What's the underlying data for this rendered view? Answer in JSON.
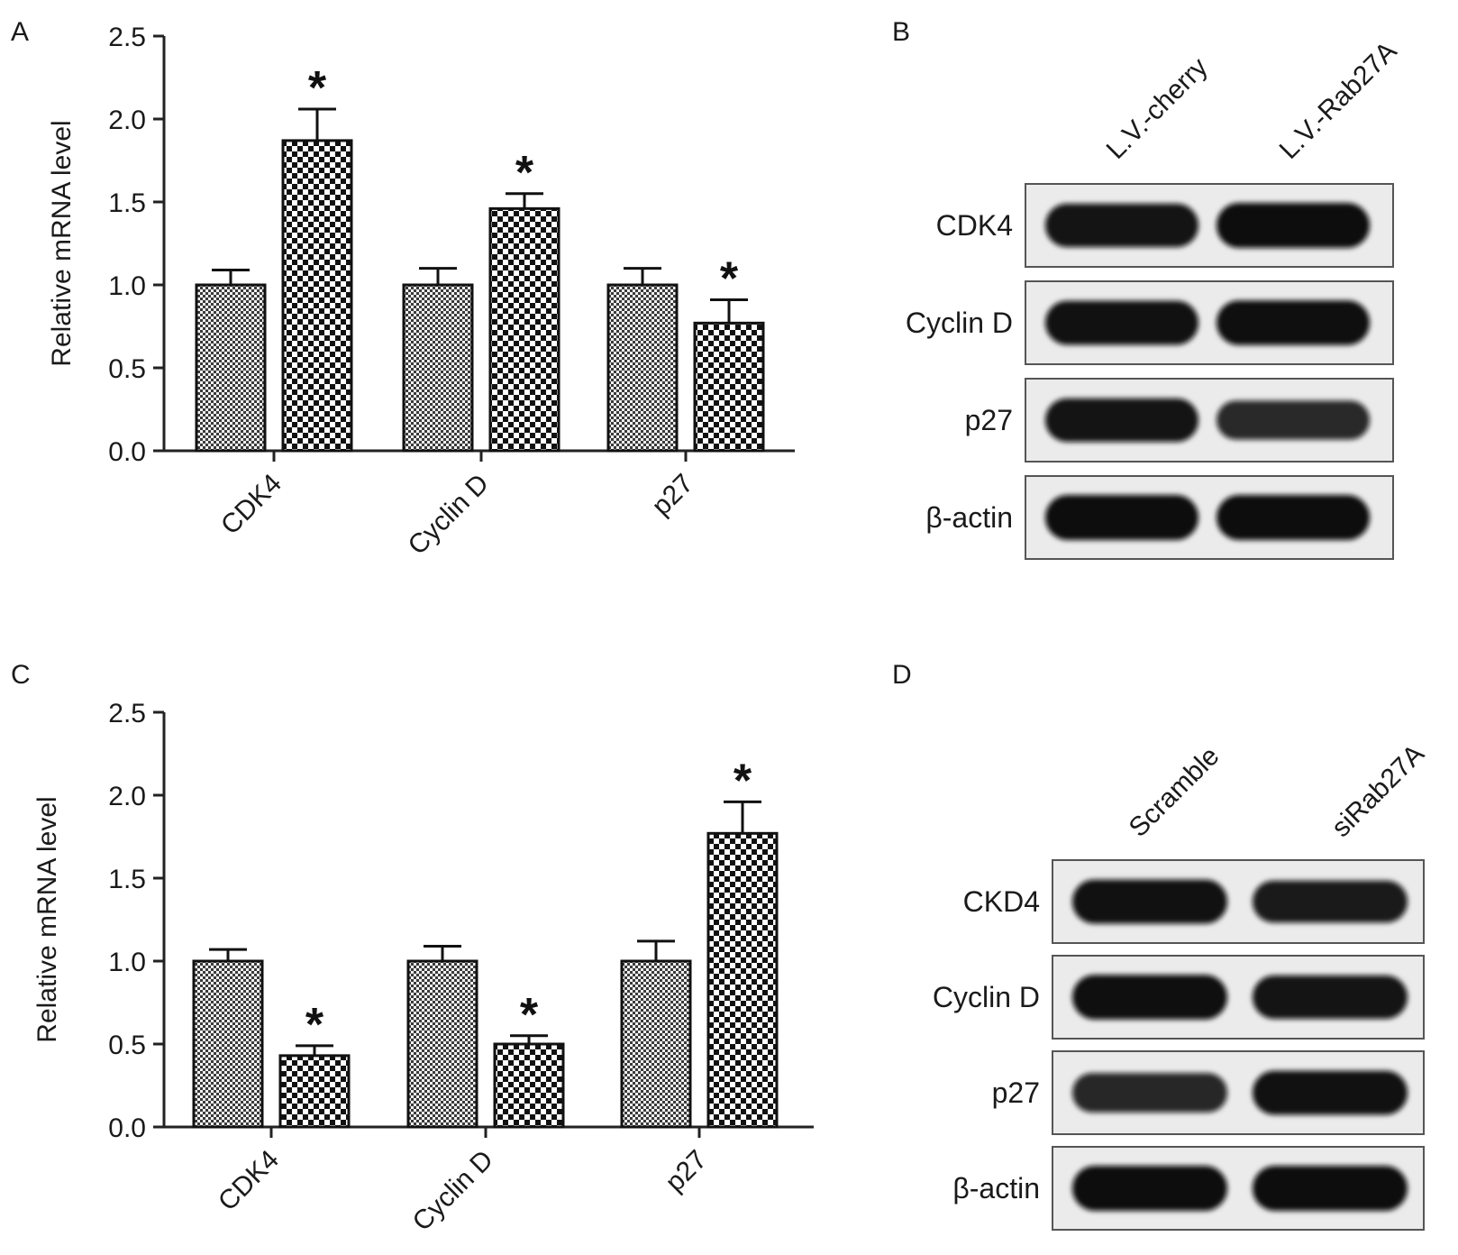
{
  "panels": {
    "A": {
      "letter": "A"
    },
    "B": {
      "letter": "B",
      "lanes": [
        "L.V.-cherry",
        "L.V.-Rab27A"
      ],
      "rows": [
        {
          "label": "CDK4",
          "left": 0.92,
          "right": 1.0
        },
        {
          "label": "Cyclin D",
          "left": 0.95,
          "right": 0.98
        },
        {
          "label": "p27",
          "left": 0.92,
          "right": 0.7
        },
        {
          "label": "β-actin",
          "left": 1.0,
          "right": 1.0
        }
      ]
    },
    "C": {
      "letter": "C"
    },
    "D": {
      "letter": "D",
      "lanes": [
        "Scramble",
        "siRab27A"
      ],
      "rows": [
        {
          "label": "CKD4",
          "left": 0.95,
          "right": 0.85
        },
        {
          "label": "Cyclin D",
          "left": 0.98,
          "right": 0.92
        },
        {
          "label": "p27",
          "left": 0.72,
          "right": 0.95
        },
        {
          "label": "β-actin",
          "left": 1.0,
          "right": 1.0
        }
      ]
    }
  },
  "chart_data": [
    {
      "panel": "A",
      "type": "bar",
      "categories": [
        "CDK4",
        "Cyclin D",
        "p27"
      ],
      "series": [
        {
          "values": [
            1.0,
            1.0,
            1.0
          ],
          "errors": [
            0.09,
            0.1,
            0.1
          ],
          "pattern": "fine-check"
        },
        {
          "values": [
            1.87,
            1.46,
            0.77
          ],
          "errors": [
            0.19,
            0.09,
            0.14
          ],
          "pattern": "coarse-check",
          "significance": [
            "*",
            "*",
            "*"
          ]
        }
      ],
      "xlabel": "",
      "ylabel": "Relative mRNA level",
      "ylim": [
        0,
        2.5
      ],
      "yticks": [
        "0.0",
        "0.5",
        "1.0",
        "1.5",
        "2.0",
        "2.5"
      ],
      "grid": false
    },
    {
      "panel": "C",
      "type": "bar",
      "categories": [
        "CDK4",
        "Cyclin D",
        "p27"
      ],
      "series": [
        {
          "values": [
            1.0,
            1.0,
            1.0
          ],
          "errors": [
            0.07,
            0.09,
            0.12
          ],
          "pattern": "fine-check"
        },
        {
          "values": [
            0.43,
            0.5,
            1.77
          ],
          "errors": [
            0.06,
            0.05,
            0.19
          ],
          "pattern": "coarse-check",
          "significance": [
            "*",
            "*",
            "*"
          ]
        }
      ],
      "xlabel": "",
      "ylabel": "Relative mRNA level",
      "ylim": [
        0,
        2.5
      ],
      "yticks": [
        "0.0",
        "0.5",
        "1.0",
        "1.5",
        "2.0",
        "2.5"
      ],
      "grid": false
    }
  ]
}
